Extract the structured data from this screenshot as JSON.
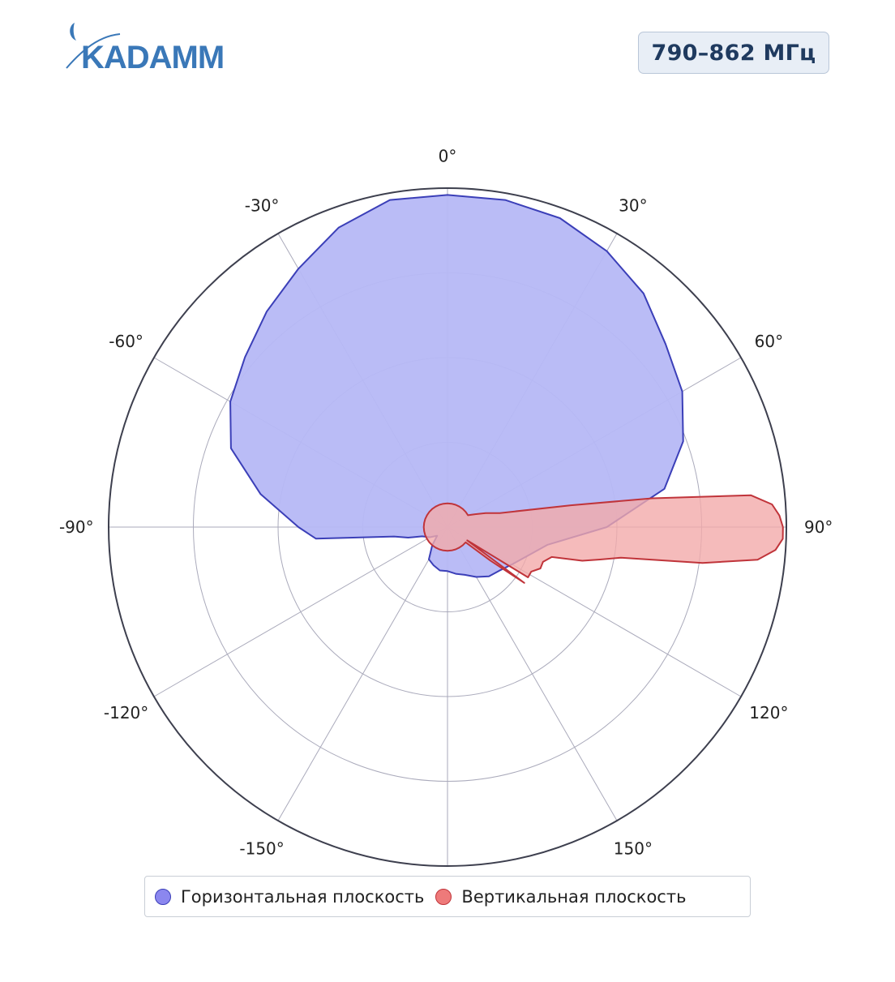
{
  "header": {
    "logo_text": "KADAMM",
    "band_label": "790–862 МГц"
  },
  "colors": {
    "horizontal_fill": "#b6b8f6",
    "horizontal_line": "#3b3fb8",
    "horizontal_swatch": "#8b87ef",
    "vertical_fill": "#f2aaaa",
    "vertical_line": "#c0343a",
    "vertical_swatch": "#ee7a7a",
    "grid": "#aaaabb",
    "outer_ring": "#3d3f4e",
    "logo_blue": "#3a78b8"
  },
  "chart_data": {
    "type": "polar",
    "angular_ticks": [
      "0°",
      "30°",
      "60°",
      "90°",
      "120°",
      "150°",
      "-150°",
      "-120°",
      "-90°",
      "-60°",
      "-30°"
    ],
    "radial_range": [
      0,
      1
    ],
    "radial_gridlines": [
      0.25,
      0.5,
      0.75,
      1.0
    ],
    "radial_tick_labels_shown": false,
    "angle_direction": "clockwise",
    "zero_at": "top",
    "legend_placement": "bottom",
    "series": [
      {
        "name": "Горизонтальная плоскость",
        "theta_deg": [
          0,
          10,
          20,
          30,
          40,
          50,
          60,
          70,
          80,
          90,
          100,
          110,
          120,
          130,
          140,
          150,
          160,
          170,
          180,
          190,
          200,
          210,
          220,
          230,
          240,
          250,
          255,
          260,
          265,
          270,
          280,
          290,
          300,
          310,
          320,
          330,
          340,
          350
        ],
        "r": [
          0.98,
          0.98,
          0.97,
          0.94,
          0.9,
          0.84,
          0.8,
          0.74,
          0.65,
          0.47,
          0.3,
          0.25,
          0.22,
          0.2,
          0.19,
          0.17,
          0.15,
          0.14,
          0.13,
          0.13,
          0.12,
          0.11,
          0.07,
          0.04,
          0.06,
          0.08,
          0.12,
          0.16,
          0.39,
          0.44,
          0.56,
          0.68,
          0.74,
          0.78,
          0.83,
          0.88,
          0.94,
          0.98
        ]
      },
      {
        "name": "Вертикальная плоскость",
        "theta_deg": [
          0,
          10,
          20,
          30,
          40,
          50,
          60,
          65,
          70,
          75,
          80,
          82,
          84,
          86,
          88,
          90,
          92,
          94,
          96,
          98,
          100,
          102,
          104,
          106,
          110,
          114,
          118,
          122,
          124,
          126,
          128,
          130,
          140,
          150,
          160,
          170,
          180,
          190,
          200,
          210,
          220,
          230,
          240,
          250,
          260,
          270,
          280,
          290,
          300,
          310,
          320,
          330,
          340,
          350
        ],
        "r": [
          0.07,
          0.07,
          0.07,
          0.07,
          0.07,
          0.07,
          0.07,
          0.09,
          0.12,
          0.16,
          0.37,
          0.61,
          0.9,
          0.96,
          0.98,
          0.99,
          0.99,
          0.97,
          0.92,
          0.76,
          0.52,
          0.46,
          0.41,
          0.32,
          0.3,
          0.3,
          0.28,
          0.28,
          0.07,
          0.28,
          0.16,
          0.07,
          0.07,
          0.07,
          0.07,
          0.07,
          0.07,
          0.07,
          0.07,
          0.07,
          0.07,
          0.07,
          0.07,
          0.07,
          0.07,
          0.07,
          0.07,
          0.07,
          0.07,
          0.07,
          0.07,
          0.07,
          0.07,
          0.07
        ]
      }
    ]
  }
}
